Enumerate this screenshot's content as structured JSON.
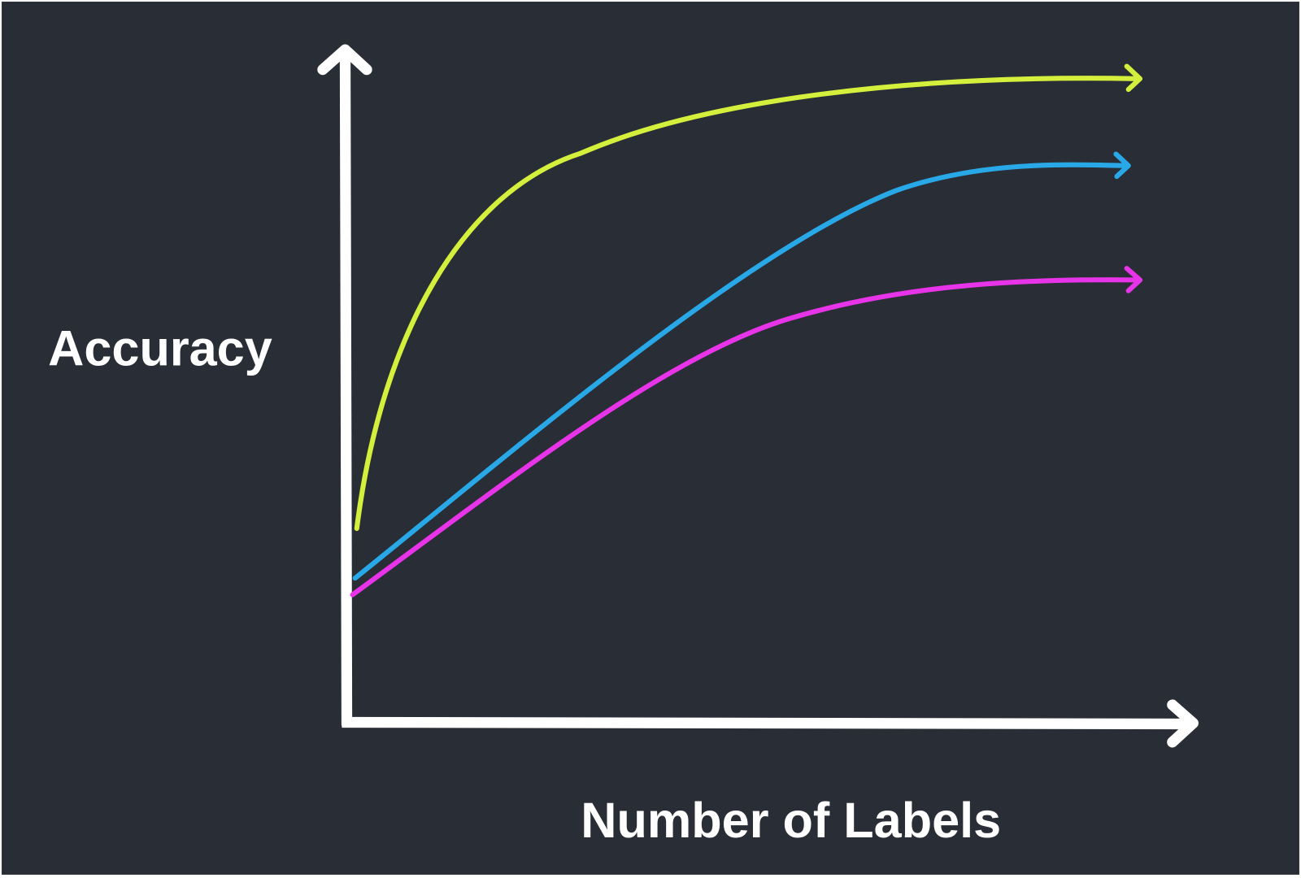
{
  "y_axis_label": "Accuracy",
  "x_axis_label": "Number of Labels"
}
